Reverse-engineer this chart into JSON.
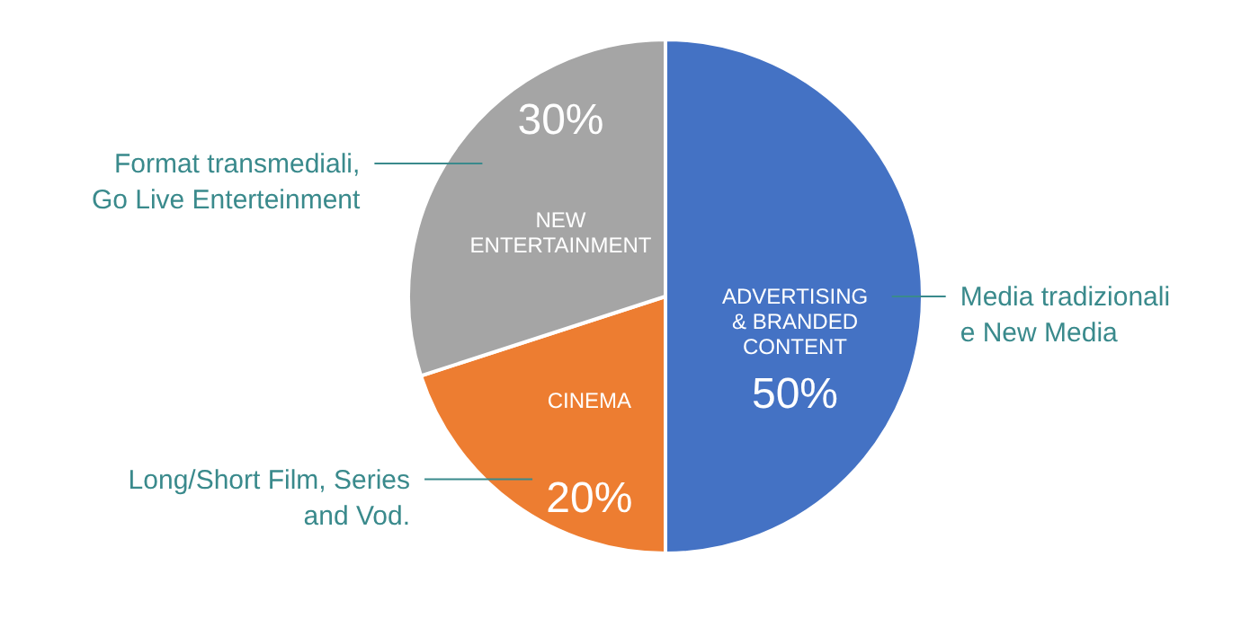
{
  "chart_data": {
    "type": "pie",
    "categories": [
      "ADVERTISING\n& BRANDED\nCONTENT",
      "CINEMA",
      "NEW\nENTERTAINMENT"
    ],
    "values": [
      50,
      20,
      30
    ],
    "colors": [
      "#4472c4",
      "#ed7d31",
      "#a5a5a5"
    ],
    "value_labels": [
      "50%",
      "20%",
      "30%"
    ],
    "annotations": [
      "Media tradizionali\ne New Media",
      "Long/Short Film, Series\nand Vod.",
      "Format transmediali,\nGo Live Enterteinment"
    ]
  }
}
